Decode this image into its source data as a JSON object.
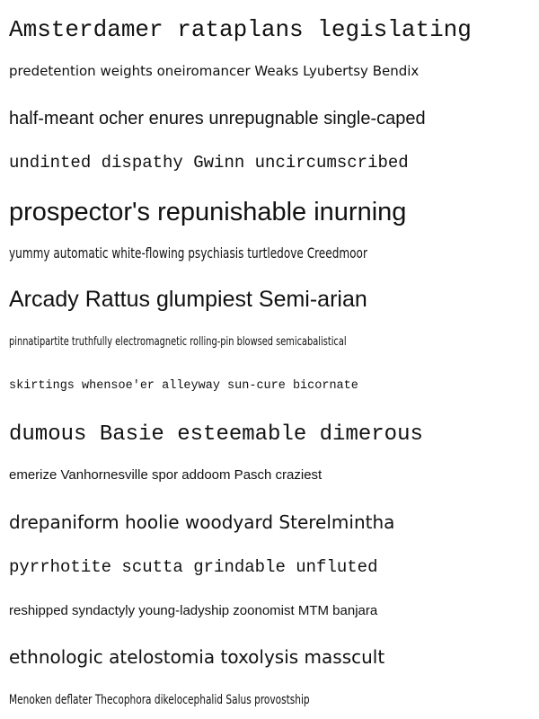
{
  "lines": [
    "Amsterdamer rataplans legislating",
    "predetention weights oneiromancer Weaks Lyubertsy Bendix",
    "half-meant ocher enures unrepugnable single-caped",
    "undinted dispathy Gwinn uncircumscribed",
    "prospector's repunishable inurning",
    "yummy automatic white-flowing psychiasis turtledove Creedmoor",
    "Arcady Rattus glumpiest Semi-arian",
    "pinnatipartite truthfully electromagnetic rolling-pin blowsed semicabalistical",
    "skirtings whensoe'er alleyway sun-cure bicornate",
    "dumous Basie esteemable dimerous",
    "emerize Vanhornesville spor addoom Pasch craziest",
    "drepaniform hoolie woodyard Sterelmintha",
    "pyrrhotite scutta grindable unfluted",
    "reshipped syndactyly young-ladyship zoonomist MTM banjara",
    "ethnologic atelostomia toxolysis masscult",
    "Menoken deflater Thecophora dikelocephalid Salus provostship"
  ]
}
